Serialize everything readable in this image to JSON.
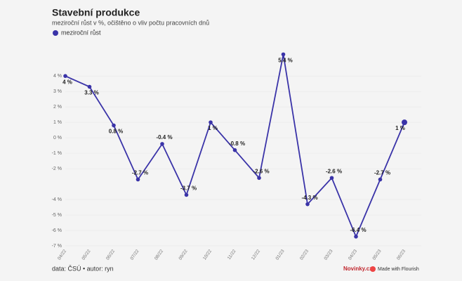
{
  "chart_data": {
    "type": "line",
    "title": "Stavební produkce",
    "subtitle": "meziroční růst v %, očištěno o vliv počtu pracovních dnů",
    "categories": [
      "04/22",
      "05/22",
      "06/22",
      "07/22",
      "08/22",
      "09/22",
      "10/22",
      "11/22",
      "12/22",
      "01/23",
      "02/23",
      "03/23",
      "04/23",
      "05/23",
      "06/23"
    ],
    "series": [
      {
        "name": "meziroční růst",
        "color": "#3a33a8",
        "values": [
          4,
          3.3,
          0.8,
          -2.7,
          -0.4,
          -3.7,
          1,
          -0.8,
          -2.6,
          5.4,
          -4.3,
          -2.6,
          -6.4,
          -2.7,
          1
        ],
        "value_labels": [
          "4 %",
          "3.3 %",
          "0.8 %",
          "-2.7 %",
          "-0.4 %",
          "-3.7 %",
          "1 %",
          "-0.8 %",
          "-2.6 %",
          "5.4 %",
          "-4.3 %",
          "-2.6 %",
          "-6.4 %",
          "-2.7 %",
          "1 %"
        ]
      }
    ],
    "ylim": [
      -7,
      5.6
    ],
    "yticks": [
      {
        "value": 4,
        "label": "4 %"
      },
      {
        "value": 3,
        "label": "3 %"
      },
      {
        "value": 2,
        "label": "2 %"
      },
      {
        "value": 1,
        "label": "1 %"
      },
      {
        "value": 0,
        "label": "0 %"
      },
      {
        "value": -1,
        "label": "-1 %"
      },
      {
        "value": -2,
        "label": "-2 %"
      },
      {
        "value": -4,
        "label": "-4 %"
      },
      {
        "value": -5,
        "label": "-5 %"
      },
      {
        "value": -6,
        "label": "-6 %"
      },
      {
        "value": -7,
        "label": "-7 %"
      }
    ],
    "source": "data: ČSÚ • autor: ryn",
    "brand": "Novinky.cz",
    "credit": "Made with Flourish"
  }
}
